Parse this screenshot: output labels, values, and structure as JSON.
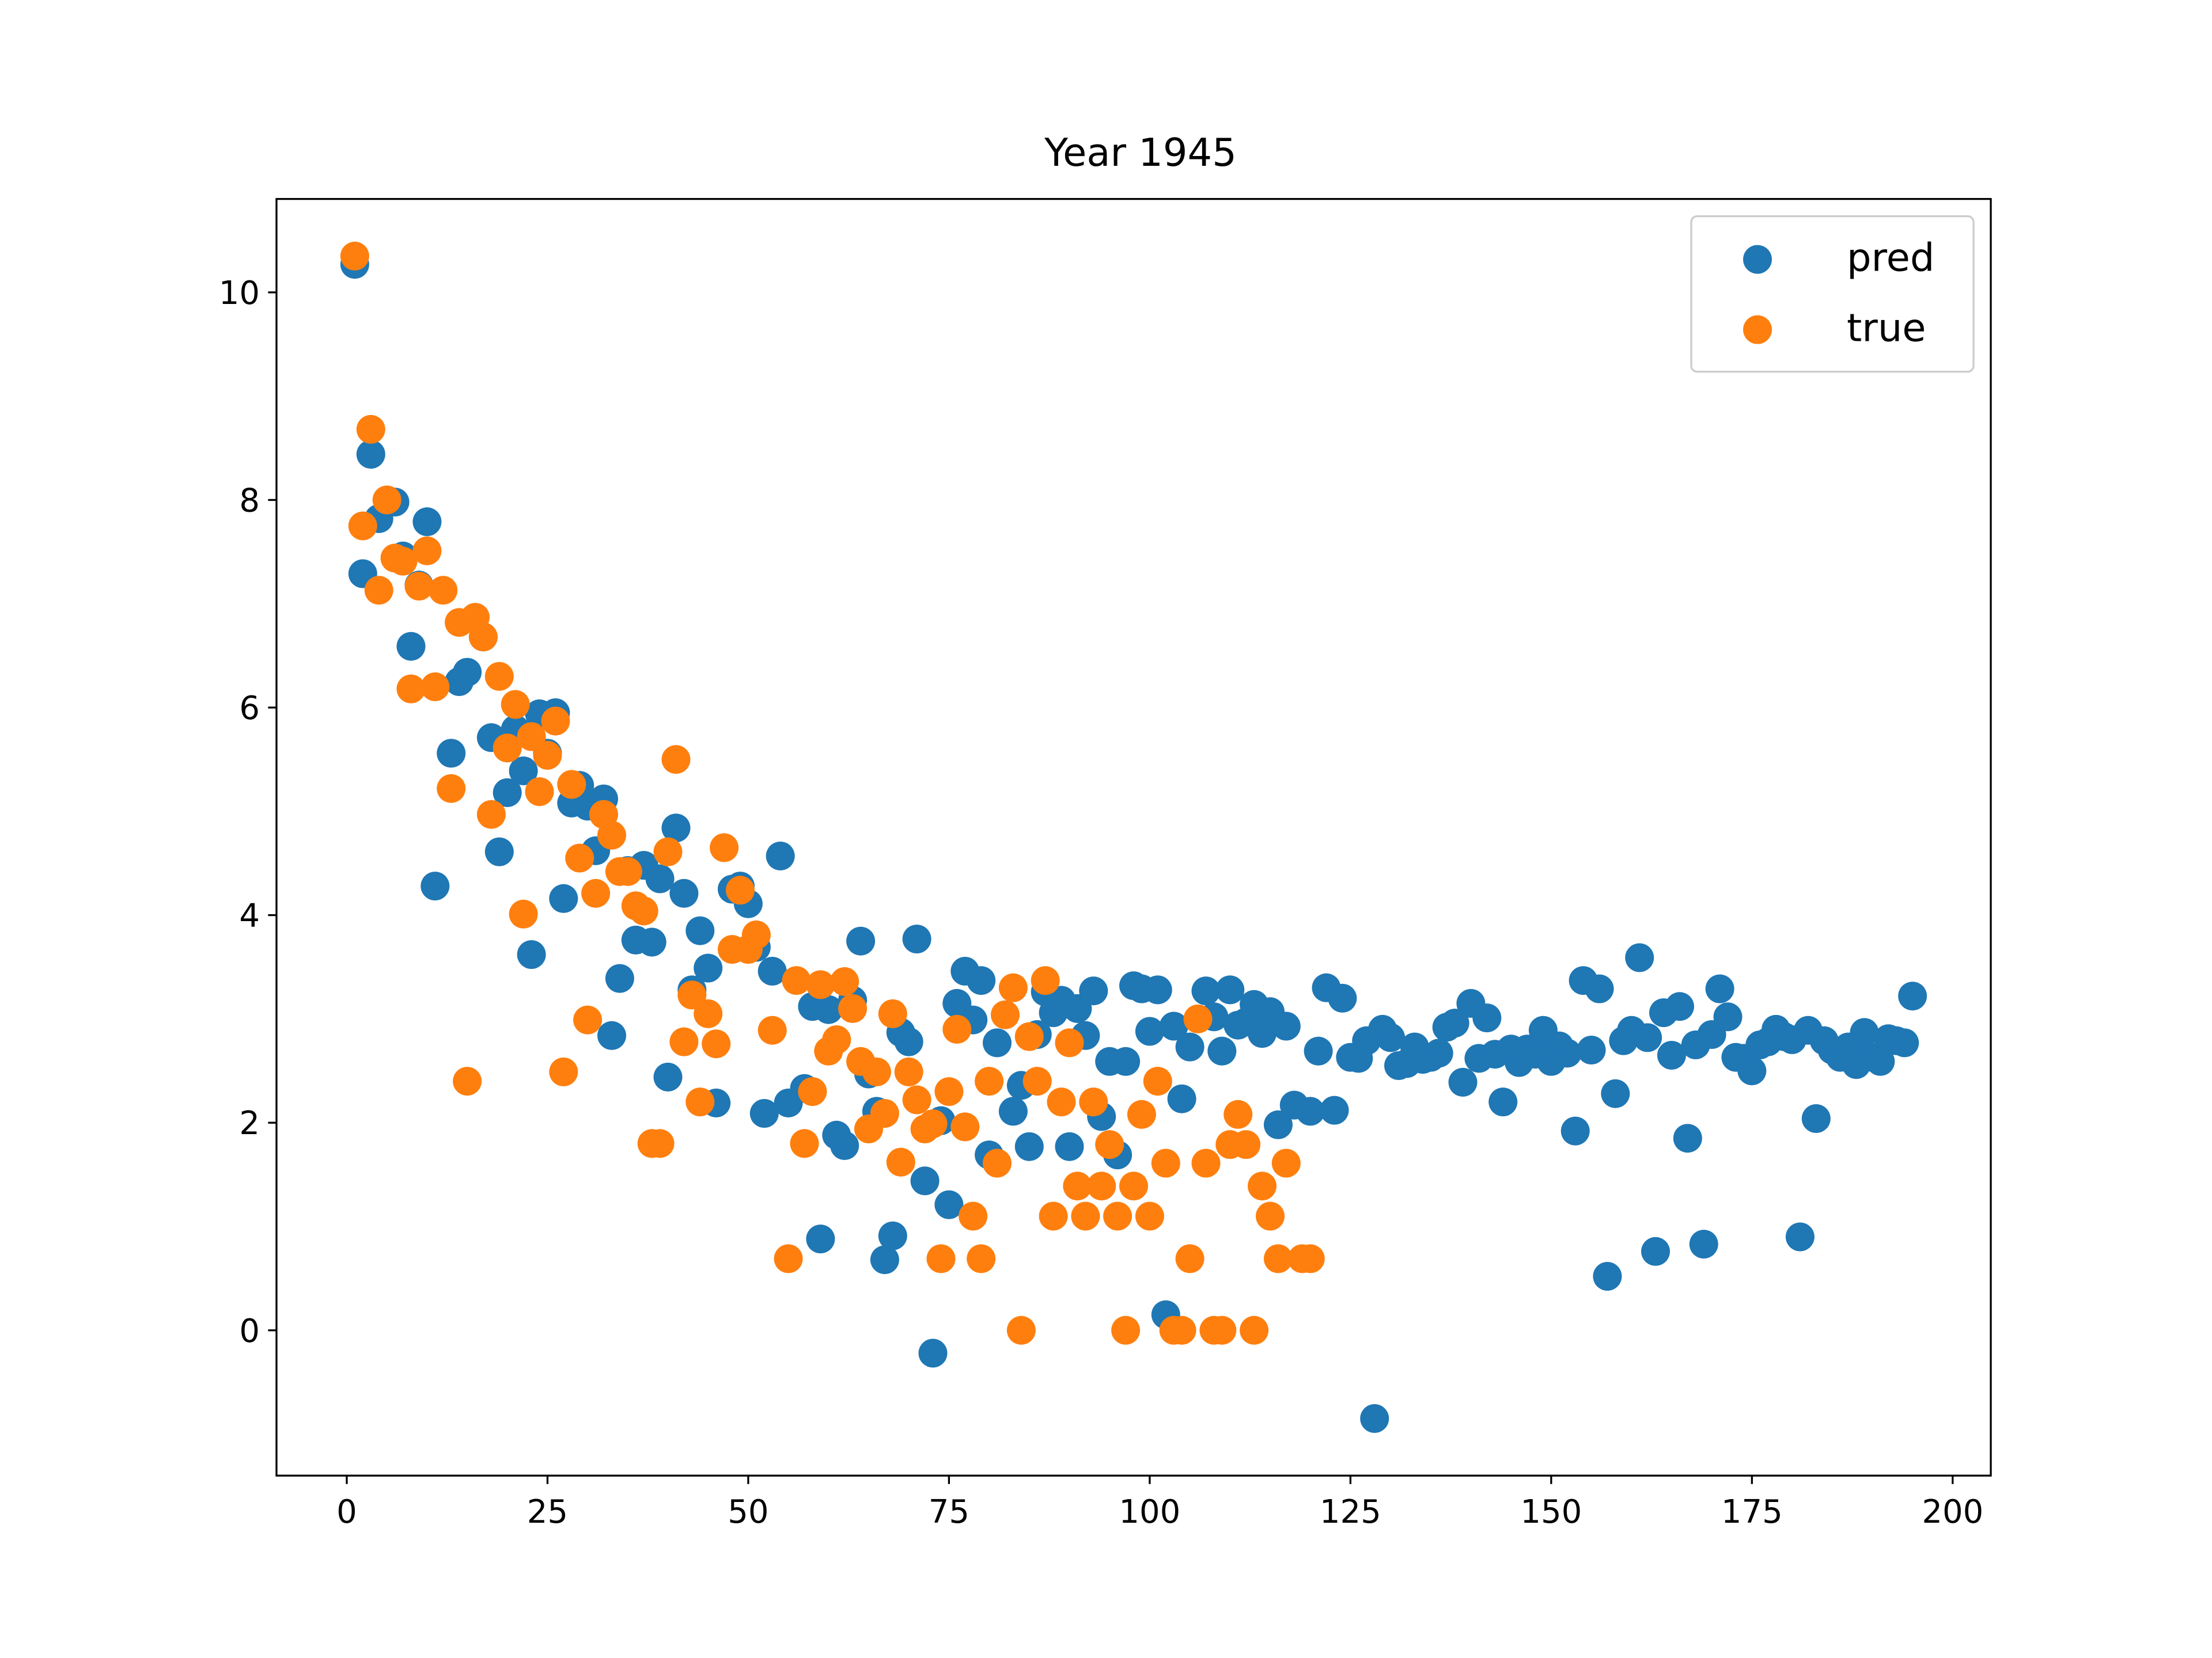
{
  "chart_data": {
    "type": "scatter",
    "title": "Year 1945",
    "xlabel": "",
    "ylabel": "",
    "xlim": [
      -8.75,
      204.75
    ],
    "ylim": [
      -1.4,
      10.9
    ],
    "xticks": [
      0,
      25,
      50,
      75,
      100,
      125,
      150,
      175,
      200
    ],
    "xtick_labels": [
      "0",
      "25",
      "50",
      "75",
      "100",
      "125",
      "150",
      "175",
      "200"
    ],
    "yticks": [
      0,
      2,
      4,
      6,
      8,
      10
    ],
    "ytick_labels": [
      "0",
      "2",
      "4",
      "6",
      "8",
      "10"
    ],
    "grid": false,
    "legend_position": "top-right",
    "series": [
      {
        "name": "pred",
        "color": "#1f77b4",
        "points": [
          [
            1,
            10.27
          ],
          [
            2,
            7.29
          ],
          [
            3,
            8.44
          ],
          [
            4,
            7.82
          ],
          [
            6,
            7.98
          ],
          [
            7,
            7.46
          ],
          [
            8,
            6.59
          ],
          [
            9,
            7.18
          ],
          [
            10,
            7.79
          ],
          [
            11,
            4.28
          ],
          [
            13,
            5.56
          ],
          [
            14,
            6.25
          ],
          [
            15,
            6.34
          ],
          [
            17,
            6.68
          ],
          [
            18,
            5.71
          ],
          [
            19,
            4.61
          ],
          [
            20,
            5.18
          ],
          [
            21,
            5.79
          ],
          [
            22,
            5.39
          ],
          [
            23,
            3.62
          ],
          [
            24,
            5.94
          ],
          [
            25,
            5.56
          ],
          [
            26,
            5.95
          ],
          [
            27,
            4.16
          ],
          [
            28,
            5.08
          ],
          [
            29,
            5.25
          ],
          [
            30,
            5.05
          ],
          [
            31,
            4.62
          ],
          [
            32,
            5.12
          ],
          [
            33,
            2.84
          ],
          [
            34,
            3.39
          ],
          [
            35,
            4.43
          ],
          [
            36,
            3.76
          ],
          [
            37,
            4.48
          ],
          [
            38,
            3.74
          ],
          [
            39,
            4.35
          ],
          [
            40,
            2.44
          ],
          [
            41,
            4.84
          ],
          [
            42,
            4.21
          ],
          [
            43,
            3.28
          ],
          [
            44,
            3.85
          ],
          [
            45,
            3.49
          ],
          [
            46,
            2.19
          ],
          [
            48,
            4.25
          ],
          [
            49,
            4.28
          ],
          [
            50,
            4.11
          ],
          [
            51,
            3.69
          ],
          [
            52,
            2.09
          ],
          [
            53,
            3.46
          ],
          [
            54,
            4.57
          ],
          [
            55,
            2.19
          ],
          [
            57,
            2.33
          ],
          [
            58,
            3.12
          ],
          [
            59,
            0.88
          ],
          [
            60,
            3.09
          ],
          [
            61,
            1.88
          ],
          [
            62,
            1.78
          ],
          [
            63,
            3.18
          ],
          [
            64,
            3.75
          ],
          [
            65,
            2.47
          ],
          [
            66,
            2.11
          ],
          [
            67,
            0.68
          ],
          [
            68,
            0.91
          ],
          [
            69,
            2.87
          ],
          [
            70,
            2.78
          ],
          [
            71,
            3.77
          ],
          [
            72,
            1.44
          ],
          [
            73,
            -0.22
          ],
          [
            74,
            2.02
          ],
          [
            75,
            1.21
          ],
          [
            76,
            3.15
          ],
          [
            77,
            3.46
          ],
          [
            78,
            2.99
          ],
          [
            79,
            3.37
          ],
          [
            80,
            1.69
          ],
          [
            81,
            2.77
          ],
          [
            83,
            2.11
          ],
          [
            84,
            2.36
          ],
          [
            85,
            1.77
          ],
          [
            86,
            2.85
          ],
          [
            87,
            3.26
          ],
          [
            88,
            3.06
          ],
          [
            89,
            3.18
          ],
          [
            90,
            1.77
          ],
          [
            91,
            3.1
          ],
          [
            92,
            2.84
          ],
          [
            93,
            3.27
          ],
          [
            94,
            2.06
          ],
          [
            95,
            2.59
          ],
          [
            96,
            1.69
          ],
          [
            97,
            2.59
          ],
          [
            98,
            3.32
          ],
          [
            99,
            3.29
          ],
          [
            100,
            2.88
          ],
          [
            101,
            3.28
          ],
          [
            102,
            0.15
          ],
          [
            103,
            2.93
          ],
          [
            104,
            2.23
          ],
          [
            105,
            2.73
          ],
          [
            107,
            3.27
          ],
          [
            108,
            3.02
          ],
          [
            109,
            2.69
          ],
          [
            110,
            3.28
          ],
          [
            111,
            2.94
          ],
          [
            112,
            2.97
          ],
          [
            113,
            3.14
          ],
          [
            114,
            2.86
          ],
          [
            115,
            3.07
          ],
          [
            116,
            1.98
          ],
          [
            117,
            2.93
          ],
          [
            118,
            2.17
          ],
          [
            120,
            2.11
          ],
          [
            121,
            2.69
          ],
          [
            122,
            3.3
          ],
          [
            123,
            2.12
          ],
          [
            124,
            3.2
          ],
          [
            125,
            2.63
          ],
          [
            126,
            2.62
          ],
          [
            127,
            2.79
          ],
          [
            128,
            -0.85
          ],
          [
            129,
            2.9
          ],
          [
            130,
            2.82
          ],
          [
            131,
            2.55
          ],
          [
            132,
            2.57
          ],
          [
            133,
            2.73
          ],
          [
            134,
            2.61
          ],
          [
            135,
            2.63
          ],
          [
            136,
            2.67
          ],
          [
            137,
            2.92
          ],
          [
            138,
            2.96
          ],
          [
            139,
            2.39
          ],
          [
            140,
            3.15
          ],
          [
            141,
            2.62
          ],
          [
            142,
            3.01
          ],
          [
            143,
            2.66
          ],
          [
            144,
            2.2
          ],
          [
            145,
            2.71
          ],
          [
            146,
            2.58
          ],
          [
            147,
            2.71
          ],
          [
            148,
            2.66
          ],
          [
            149,
            2.89
          ],
          [
            150,
            2.59
          ],
          [
            151,
            2.74
          ],
          [
            152,
            2.67
          ],
          [
            153,
            1.92
          ],
          [
            154,
            3.37
          ],
          [
            155,
            2.7
          ],
          [
            156,
            3.29
          ],
          [
            157,
            0.52
          ],
          [
            158,
            2.28
          ],
          [
            159,
            2.79
          ],
          [
            160,
            2.89
          ],
          [
            161,
            3.59
          ],
          [
            162,
            2.82
          ],
          [
            163,
            0.76
          ],
          [
            164,
            3.06
          ],
          [
            165,
            2.65
          ],
          [
            166,
            3.12
          ],
          [
            167,
            1.85
          ],
          [
            168,
            2.75
          ],
          [
            169,
            0.83
          ],
          [
            170,
            2.85
          ],
          [
            171,
            3.29
          ],
          [
            172,
            3.02
          ],
          [
            173,
            2.63
          ],
          [
            174,
            2.62
          ],
          [
            175,
            2.5
          ],
          [
            176,
            2.75
          ],
          [
            177,
            2.78
          ],
          [
            178,
            2.9
          ],
          [
            179,
            2.83
          ],
          [
            180,
            2.8
          ],
          [
            181,
            0.9
          ],
          [
            182,
            2.89
          ],
          [
            183,
            2.04
          ],
          [
            184,
            2.79
          ],
          [
            185,
            2.7
          ],
          [
            186,
            2.63
          ],
          [
            187,
            2.73
          ],
          [
            188,
            2.56
          ],
          [
            189,
            2.87
          ],
          [
            190,
            2.63
          ],
          [
            191,
            2.59
          ],
          [
            192,
            2.81
          ],
          [
            193,
            2.79
          ],
          [
            194,
            2.77
          ],
          [
            195,
            3.22
          ]
        ]
      },
      {
        "name": "true",
        "color": "#ff7f0e",
        "points": [
          [
            1,
            10.35
          ],
          [
            2,
            7.75
          ],
          [
            3,
            8.68
          ],
          [
            4,
            7.13
          ],
          [
            5,
            8.0
          ],
          [
            6,
            7.44
          ],
          [
            7,
            7.41
          ],
          [
            8,
            6.18
          ],
          [
            9,
            7.17
          ],
          [
            10,
            7.51
          ],
          [
            11,
            6.2
          ],
          [
            12,
            7.13
          ],
          [
            13,
            5.22
          ],
          [
            14,
            6.82
          ],
          [
            15,
            2.4
          ],
          [
            16,
            6.87
          ],
          [
            17,
            6.68
          ],
          [
            18,
            4.97
          ],
          [
            19,
            6.3
          ],
          [
            20,
            5.61
          ],
          [
            21,
            6.03
          ],
          [
            22,
            4.01
          ],
          [
            23,
            5.72
          ],
          [
            24,
            5.19
          ],
          [
            25,
            5.54
          ],
          [
            26,
            5.87
          ],
          [
            27,
            2.49
          ],
          [
            28,
            5.26
          ],
          [
            29,
            4.55
          ],
          [
            30,
            2.99
          ],
          [
            31,
            4.21
          ],
          [
            32,
            4.97
          ],
          [
            33,
            4.77
          ],
          [
            34,
            4.42
          ],
          [
            35,
            4.42
          ],
          [
            36,
            4.09
          ],
          [
            37,
            4.04
          ],
          [
            38,
            1.8
          ],
          [
            39,
            1.8
          ],
          [
            40,
            4.61
          ],
          [
            41,
            5.5
          ],
          [
            42,
            2.78
          ],
          [
            43,
            3.23
          ],
          [
            44,
            2.2
          ],
          [
            45,
            3.05
          ],
          [
            46,
            2.76
          ],
          [
            47,
            4.65
          ],
          [
            48,
            3.67
          ],
          [
            49,
            4.24
          ],
          [
            50,
            3.67
          ],
          [
            51,
            3.81
          ],
          [
            53,
            2.89
          ],
          [
            55,
            0.69
          ],
          [
            56,
            3.37
          ],
          [
            57,
            1.8
          ],
          [
            58,
            2.3
          ],
          [
            59,
            3.33
          ],
          [
            60,
            2.69
          ],
          [
            61,
            2.8
          ],
          [
            62,
            3.36
          ],
          [
            63,
            3.1
          ],
          [
            64,
            2.59
          ],
          [
            65,
            1.94
          ],
          [
            66,
            2.49
          ],
          [
            67,
            2.09
          ],
          [
            68,
            3.05
          ],
          [
            69,
            1.62
          ],
          [
            70,
            2.49
          ],
          [
            71,
            2.22
          ],
          [
            72,
            1.94
          ],
          [
            73,
            1.99
          ],
          [
            74,
            0.69
          ],
          [
            75,
            2.3
          ],
          [
            76,
            2.9
          ],
          [
            77,
            1.96
          ],
          [
            78,
            1.1
          ],
          [
            79,
            0.69
          ],
          [
            80,
            2.4
          ],
          [
            81,
            1.61
          ],
          [
            82,
            3.04
          ],
          [
            83,
            3.3
          ],
          [
            84,
            0.0
          ],
          [
            85,
            2.83
          ],
          [
            86,
            2.4
          ],
          [
            87,
            3.37
          ],
          [
            88,
            1.1
          ],
          [
            89,
            2.2
          ],
          [
            90,
            2.77
          ],
          [
            91,
            1.39
          ],
          [
            92,
            1.1
          ],
          [
            93,
            2.2
          ],
          [
            94,
            1.39
          ],
          [
            95,
            1.79
          ],
          [
            96,
            1.1
          ],
          [
            97,
            0.0
          ],
          [
            98,
            1.39
          ],
          [
            99,
            2.08
          ],
          [
            100,
            1.1
          ],
          [
            101,
            2.4
          ],
          [
            102,
            1.61
          ],
          [
            103,
            0.0
          ],
          [
            104,
            0.0
          ],
          [
            105,
            0.69
          ],
          [
            106,
            3.0
          ],
          [
            107,
            1.61
          ],
          [
            108,
            0.0
          ],
          [
            109,
            0.0
          ],
          [
            110,
            1.79
          ],
          [
            111,
            2.08
          ],
          [
            112,
            1.79
          ],
          [
            113,
            0.0
          ],
          [
            114,
            1.39
          ],
          [
            115,
            1.1
          ],
          [
            116,
            0.69
          ],
          [
            117,
            1.61
          ],
          [
            119,
            0.69
          ],
          [
            120,
            0.69
          ]
        ]
      }
    ]
  }
}
